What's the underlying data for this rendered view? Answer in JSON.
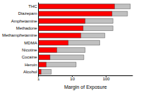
{
  "chart_data": {
    "type": "bar",
    "orientation": "horizontal",
    "log": "x",
    "stacked": false,
    "grid": false,
    "x_label": "Margin of Exposure",
    "categories": [
      "THC",
      "Diazepam",
      "Amphetamine",
      "Methadone",
      "Methamphetamine",
      "MDMA",
      "Nicotine",
      "Cocaine",
      "Heroin",
      "Alcohol"
    ],
    "series": [
      {
        "color": "#c0c0c0",
        "values": [
          520,
          430,
          160,
          160,
          92,
          65,
          24,
          22,
          13,
          2.4
        ]
      },
      {
        "color": "#ff0000",
        "values": [
          178,
          150,
          24,
          21,
          18,
          7.6,
          3.5,
          2.2,
          1.7,
          1.2
        ],
        "errors": [
          120,
          100,
          12,
          20,
          10,
          6,
          2.5,
          1.2,
          0.6,
          0.4
        ]
      }
    ],
    "xlim": [
      1,
      600
    ],
    "xticks": [
      1,
      10,
      100
    ]
  }
}
